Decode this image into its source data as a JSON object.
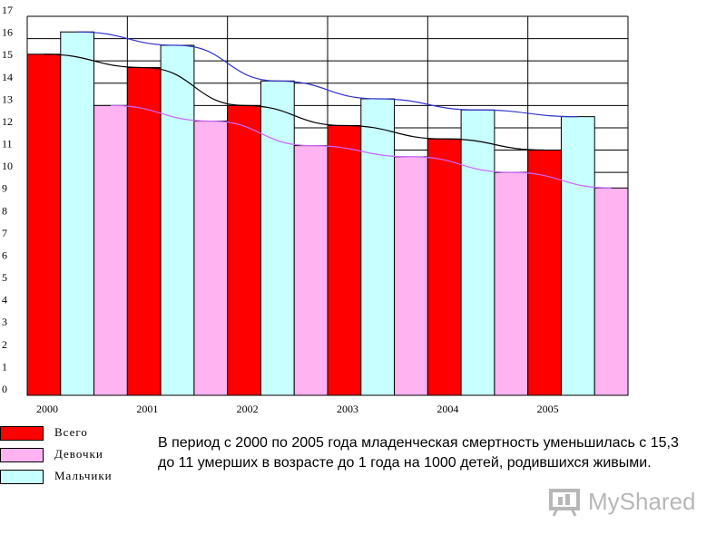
{
  "chart_data": {
    "type": "bar",
    "categories": [
      "2000",
      "2001",
      "2002",
      "2003",
      "2004",
      "2005"
    ],
    "series": [
      {
        "name": "Всего",
        "values": [
          15.3,
          14.7,
          13.0,
          12.1,
          11.5,
          11.0
        ],
        "color": "#ff0000"
      },
      {
        "name": "Девочки",
        "values": [
          13.0,
          12.3,
          11.2,
          10.7,
          10.0,
          9.3
        ],
        "color": "#ffb3f0"
      },
      {
        "name": "Мальчики",
        "values": [
          16.3,
          15.7,
          14.1,
          13.3,
          12.8,
          12.5
        ],
        "color": "#c8ffff"
      }
    ],
    "trendlines": [
      {
        "series": "Мальчики",
        "color": "#3333cc"
      },
      {
        "series": "Всего",
        "color": "#000000"
      },
      {
        "series": "Девочки",
        "color": "#cc66ff"
      }
    ],
    "ylim": [
      0,
      17
    ],
    "yticks": [
      "0",
      "1",
      "2",
      "3",
      "4",
      "5",
      "6",
      "7",
      "8",
      "9",
      "10",
      "11",
      "12",
      "13",
      "14",
      "15",
      "16",
      "17"
    ],
    "grid": true,
    "legend_position": "bottom-left"
  },
  "legend": {
    "items": [
      {
        "label": "Всего",
        "color": "#ff0000"
      },
      {
        "label": "Девочки",
        "color": "#ffb3f0"
      },
      {
        "label": "Мальчики",
        "color": "#c8ffff"
      }
    ]
  },
  "caption": "В период с 2000 по 2005 года  младенческая  смертность уменьшилась с 15,3 до 11 умерших в возрасте до 1 года на 1000 детей, родившихся живыми.",
  "watermark": {
    "text": "MyShared",
    "icon": "presentation-board-icon"
  }
}
